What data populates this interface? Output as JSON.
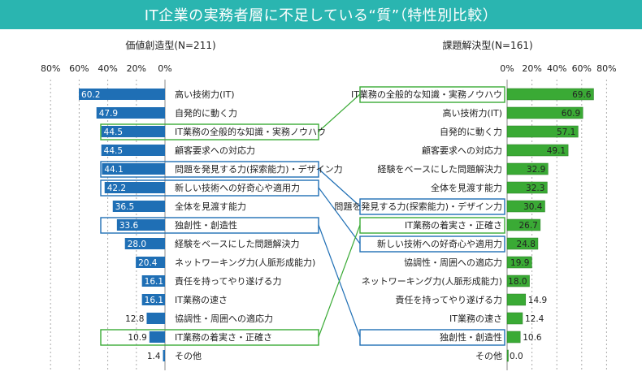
{
  "page_title": "IT企業の実務者層に不足している“質”（特性別比較）",
  "chart_data": [
    {
      "type": "bar",
      "orientation": "horizontal",
      "title": "価値創造型(N=211)",
      "direction": "left",
      "xlim": [
        0,
        80
      ],
      "ticks": [
        "80%",
        "60%",
        "40%",
        "20%",
        "0%"
      ],
      "bar_color": "#1f6fb5",
      "grid": true,
      "categories": [
        "高い技術力(IT)",
        "自発的に動く力",
        "IT業務の全般的な知識・実務ノウハウ",
        "顧客要求への対応力",
        "問題を発見する力(探索能力)・デザイン力",
        "新しい技術への好奇心や適用力",
        "全体を見渡す能力",
        "独創性・創造性",
        "経験をベースにした問題解決力",
        "ネットワーキング力(人脈形成能力)",
        "責任を持ってやり遂げる力",
        "IT業務の速さ",
        "協調性・周囲への適応力",
        "IT業務の着実さ・正確さ",
        "その他"
      ],
      "values": [
        60.2,
        47.9,
        44.5,
        44.5,
        44.1,
        42.2,
        36.5,
        33.6,
        28.0,
        20.4,
        16.1,
        16.1,
        12.8,
        10.9,
        1.4
      ],
      "value_labels": [
        "60.2",
        "47.9",
        "44.5",
        "44.5",
        "44.1",
        "42.2",
        "36.5",
        "33.6",
        "28.0",
        "20.4",
        "16.1",
        "16.1",
        "12.8",
        "10.9",
        "1.4"
      ],
      "highlights": {
        "IT業務の全般的な知識・実務ノウハウ": "green",
        "問題を発見する力(探索能力)・デザイン力": "blue",
        "新しい技術への好奇心や適用力": "blue",
        "独創性・創造性": "blue",
        "IT業務の着実さ・正確さ": "green"
      }
    },
    {
      "type": "bar",
      "orientation": "horizontal",
      "title": "課題解決型(N=161)",
      "direction": "right",
      "xlim": [
        0,
        80
      ],
      "ticks": [
        "0%",
        "20%",
        "40%",
        "60%",
        "80%"
      ],
      "bar_color": "#3aaa35",
      "grid": true,
      "categories": [
        "IT業務の全般的な知識・実務ノウハウ",
        "高い技術力(IT)",
        "自発的に動く力",
        "顧客要求への対応力",
        "経験をベースにした問題解決力",
        "全体を見渡す能力",
        "問題を発見する力(探索能力)・デザイン力",
        "IT業務の着実さ・正確さ",
        "新しい技術への好奇心や適用力",
        "協調性・周囲への適応力",
        "ネットワーキング力(人脈形成能力)",
        "責任を持ってやり遂げる力",
        "IT業務の速さ",
        "独創性・創造性",
        "その他"
      ],
      "values": [
        69.6,
        60.9,
        57.1,
        49.1,
        32.9,
        32.3,
        30.4,
        26.7,
        24.8,
        19.9,
        18.0,
        14.9,
        12.4,
        10.6,
        0.0
      ],
      "value_labels": [
        "69.6",
        "60.9",
        "57.1",
        "49.1",
        "32.9",
        "32.3",
        "30.4",
        "26.7",
        "24.8",
        "19.9",
        "18.0",
        "14.9",
        "12.4",
        "10.6",
        "0.0"
      ],
      "highlights": {
        "IT業務の全般的な知識・実務ノウハウ": "green",
        "問題を発見する力(探索能力)・デザイン力": "blue",
        "IT業務の着実さ・正確さ": "green",
        "新しい技術への好奇心や適用力": "blue",
        "独創性・創造性": "blue"
      }
    }
  ],
  "colors": {
    "header": "#2ab5b0",
    "highlight_green": "#3aaa35",
    "highlight_blue": "#1f6fb5"
  }
}
